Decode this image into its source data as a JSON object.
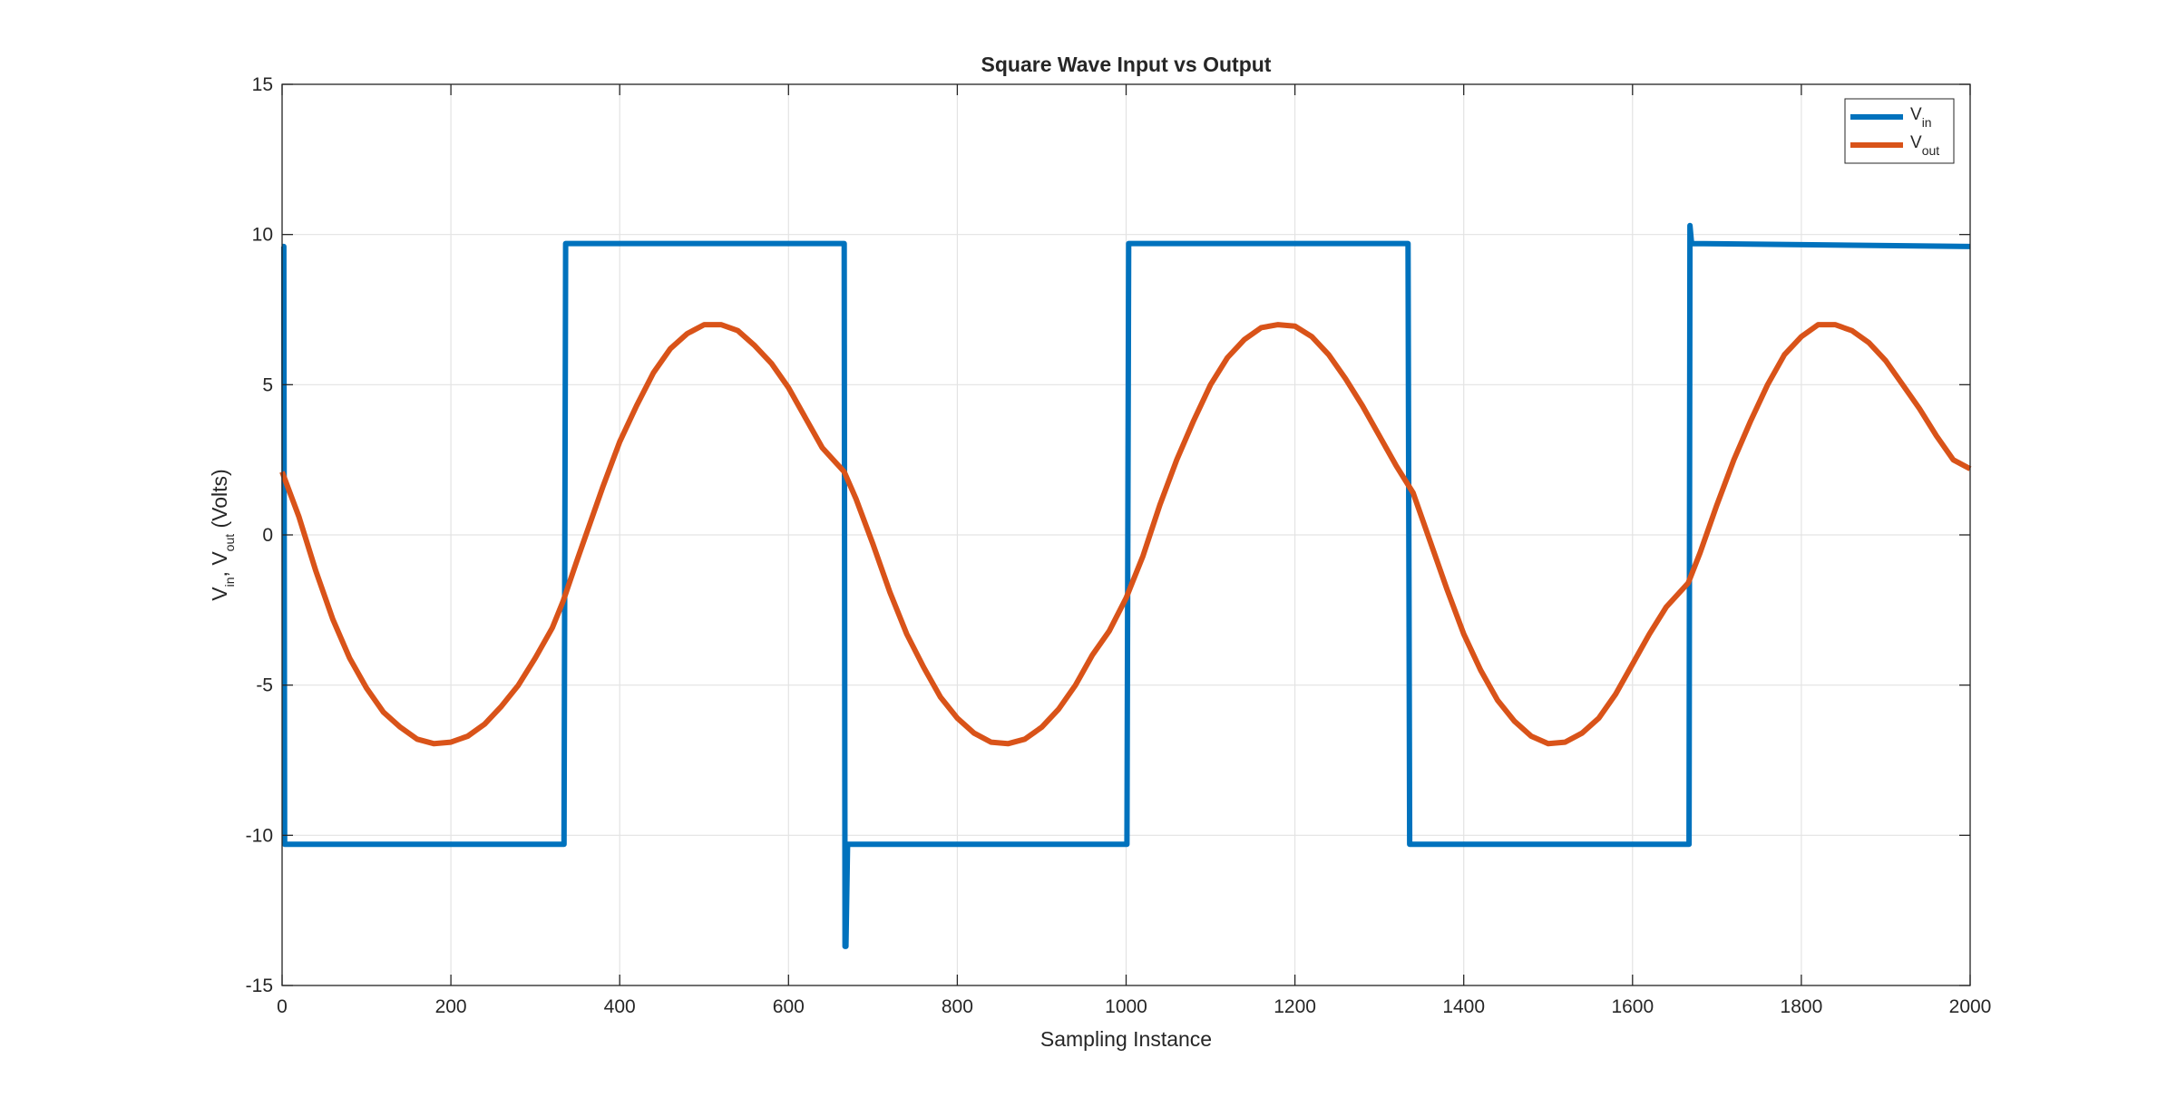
{
  "chart_data": {
    "type": "line",
    "title": "Square Wave Input vs Output",
    "xlabel": "Sampling Instance",
    "ylabel": {
      "v1": "V",
      "sub1": "in",
      "sep": ", ",
      "v2": "V",
      "sub2": "out",
      "rest": " (Volts)"
    },
    "xlim": [
      0,
      2000
    ],
    "ylim": [
      -15,
      15
    ],
    "xticks": [
      0,
      200,
      400,
      600,
      800,
      1000,
      1200,
      1400,
      1600,
      1800,
      2000
    ],
    "yticks": [
      -15,
      -10,
      -5,
      0,
      5,
      10,
      15
    ],
    "grid": true,
    "legend_position": "top-right",
    "series": [
      {
        "key": "vin",
        "name": {
          "main": "V",
          "sub": "in"
        },
        "color": "#0072BD",
        "x": [
          0,
          2,
          3,
          333,
          334,
          336,
          666,
          667,
          668,
          670,
          1000,
          1001,
          1003,
          1333,
          1334,
          1336,
          1666,
          1667,
          1668,
          1670,
          2000
        ],
        "y": [
          9.6,
          9.6,
          -10.3,
          -10.3,
          -10.3,
          9.7,
          9.7,
          -13.7,
          -13.7,
          -10.3,
          -10.3,
          -10.3,
          9.7,
          9.7,
          9.7,
          -10.3,
          -10.3,
          -10.3,
          10.3,
          9.7,
          9.6
        ]
      },
      {
        "key": "vout",
        "name": {
          "main": "V",
          "sub": "out"
        },
        "color": "#D95319",
        "x": [
          0,
          20,
          40,
          60,
          80,
          100,
          120,
          140,
          160,
          180,
          200,
          220,
          240,
          260,
          280,
          300,
          320,
          333,
          350,
          380,
          400,
          420,
          440,
          460,
          480,
          500,
          520,
          540,
          560,
          580,
          600,
          620,
          640,
          666,
          680,
          700,
          720,
          740,
          760,
          780,
          800,
          820,
          840,
          860,
          880,
          900,
          920,
          940,
          960,
          980,
          1000,
          1020,
          1040,
          1060,
          1080,
          1100,
          1120,
          1140,
          1160,
          1180,
          1200,
          1220,
          1240,
          1260,
          1280,
          1300,
          1320,
          1340,
          1360,
          1380,
          1400,
          1420,
          1440,
          1460,
          1480,
          1500,
          1520,
          1540,
          1560,
          1580,
          1600,
          1620,
          1640,
          1666,
          1680,
          1700,
          1720,
          1740,
          1760,
          1780,
          1800,
          1820,
          1840,
          1860,
          1880,
          1900,
          1920,
          1940,
          1960,
          1980,
          2000
        ],
        "y": [
          2.1,
          0.6,
          -1.2,
          -2.8,
          -4.1,
          -5.1,
          -5.9,
          -6.4,
          -6.8,
          -6.95,
          -6.9,
          -6.7,
          -6.3,
          -5.7,
          -5.0,
          -4.1,
          -3.1,
          -2.2,
          -0.8,
          1.6,
          3.1,
          4.3,
          5.4,
          6.2,
          6.7,
          7.0,
          7.0,
          6.8,
          6.3,
          5.7,
          4.9,
          3.9,
          2.9,
          2.1,
          1.2,
          -0.3,
          -1.9,
          -3.3,
          -4.4,
          -5.4,
          -6.1,
          -6.6,
          -6.9,
          -6.95,
          -6.8,
          -6.4,
          -5.8,
          -5.0,
          -4.0,
          -3.2,
          -2.1,
          -0.7,
          1.0,
          2.5,
          3.8,
          5.0,
          5.9,
          6.5,
          6.9,
          7.0,
          6.95,
          6.6,
          6.0,
          5.2,
          4.3,
          3.3,
          2.3,
          1.4,
          -0.2,
          -1.8,
          -3.3,
          -4.5,
          -5.5,
          -6.2,
          -6.7,
          -6.95,
          -6.9,
          -6.6,
          -6.1,
          -5.3,
          -4.3,
          -3.3,
          -2.4,
          -1.6,
          -0.6,
          1.0,
          2.5,
          3.8,
          5.0,
          6.0,
          6.6,
          7.0,
          7.0,
          6.8,
          6.4,
          5.8,
          5.0,
          4.2,
          3.3,
          2.5,
          2.2
        ]
      }
    ]
  }
}
